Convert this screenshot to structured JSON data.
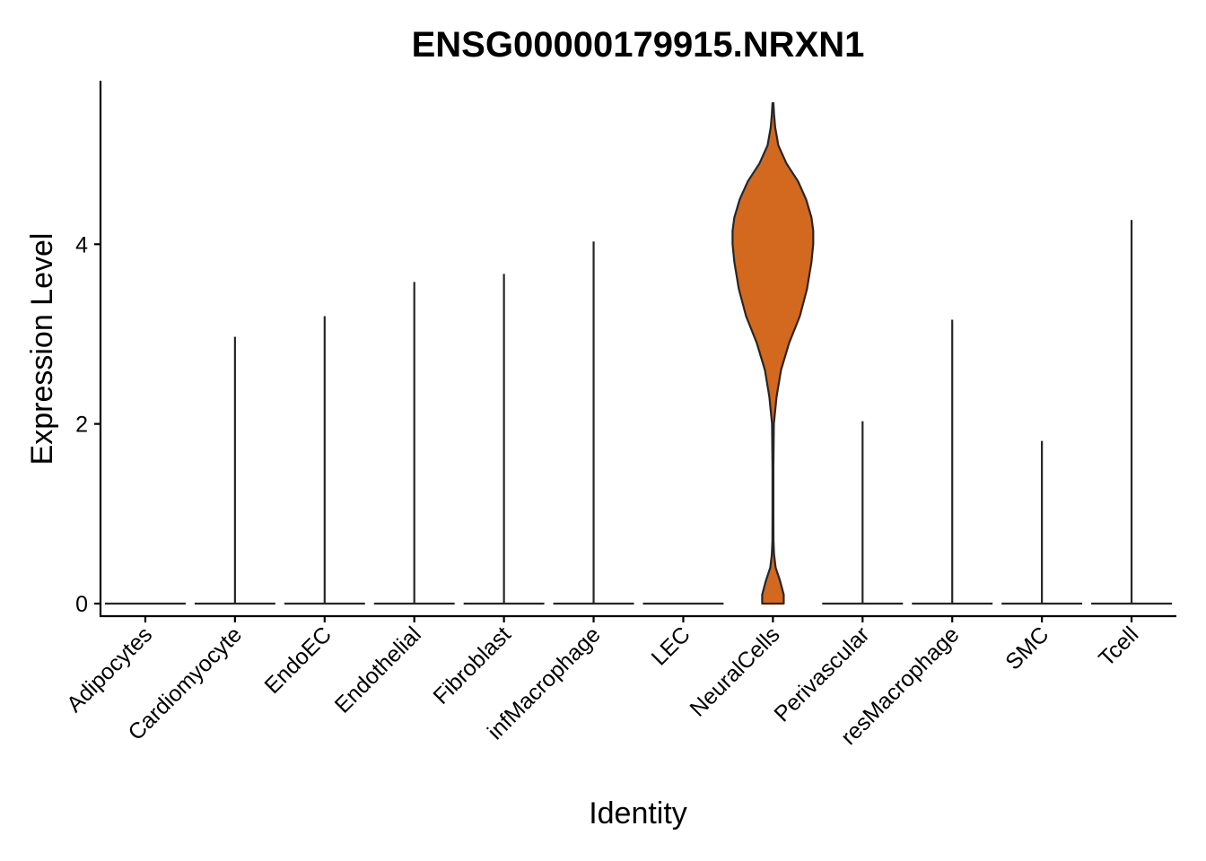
{
  "chart_data": {
    "type": "violin",
    "title": "ENSG00000179915.NRXN1",
    "xlabel": "Identity",
    "ylabel": "Expression Level",
    "ylim": [
      -0.14,
      5.82
    ],
    "yticks": [
      0,
      2,
      4
    ],
    "grid": false,
    "legend": "none",
    "categories": [
      "Adipocytes",
      "Cardiomyocyte",
      "EndoEC",
      "Endothelial",
      "Fibroblast",
      "infMacrophage",
      "LEC",
      "NeuralCells",
      "Perivascular",
      "resMacrophage",
      "SMC",
      "Tcell"
    ],
    "max_values": [
      0,
      2.97,
      3.2,
      3.58,
      3.67,
      4.03,
      0,
      5.57,
      2.03,
      3.16,
      1.81,
      4.27
    ],
    "fill_colors": [
      "#ffffff",
      "#ffffff",
      "#ffffff",
      "#ffffff",
      "#ffffff",
      "#ffffff",
      "#ffffff",
      "#d2691e",
      "#ffffff",
      "#ffffff",
      "#ffffff",
      "#ffffff"
    ],
    "neural_cells_density": {
      "y": [
        0,
        0.1,
        0.25,
        0.4,
        0.55,
        0.7,
        1.0,
        1.5,
        2.0,
        2.3,
        2.6,
        2.9,
        3.2,
        3.5,
        3.8,
        4.0,
        4.15,
        4.3,
        4.5,
        4.7,
        4.9,
        5.1,
        5.3,
        5.45,
        5.57
      ],
      "half_width": [
        0.12,
        0.12,
        0.08,
        0.03,
        0.012,
        0.006,
        0.005,
        0.005,
        0.01,
        0.04,
        0.09,
        0.18,
        0.3,
        0.38,
        0.43,
        0.45,
        0.45,
        0.43,
        0.37,
        0.28,
        0.15,
        0.06,
        0.025,
        0.012,
        0.005
      ]
    }
  }
}
